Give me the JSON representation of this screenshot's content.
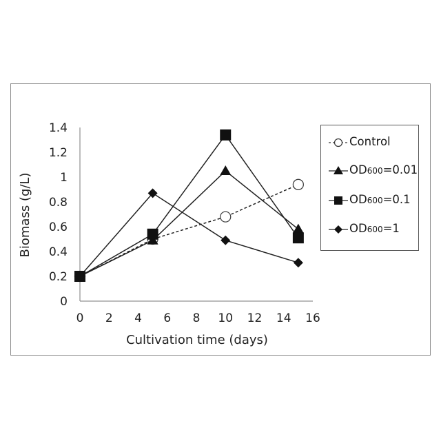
{
  "chart_data": {
    "type": "line",
    "title": "",
    "xlabel": "Cultivation time (days)",
    "ylabel": "Biomass (g/L)",
    "xlim": [
      0,
      16
    ],
    "ylim": [
      0,
      1.4
    ],
    "x_ticks": [
      "0",
      "2",
      "4",
      "6",
      "8",
      "10",
      "12",
      "14",
      "16"
    ],
    "y_ticks": [
      "0",
      "0.2",
      "0.4",
      "0.6",
      "0.8",
      "1",
      "1.2",
      "1.4"
    ],
    "grid": false,
    "legend_position": "right",
    "series": [
      {
        "name": "Control",
        "marker": "open-circle",
        "line": "dashed",
        "x": [
          0,
          5,
          10,
          15
        ],
        "y": [
          0.2,
          0.5,
          0.68,
          0.94
        ]
      },
      {
        "name": "OD600=0.01",
        "label_main": "OD",
        "label_sub": "600",
        "label_rest": "=0.01",
        "marker": "triangle",
        "line": "solid",
        "x": [
          0,
          5,
          10,
          15
        ],
        "y": [
          0.2,
          0.49,
          1.05,
          0.58
        ]
      },
      {
        "name": "OD600=0.1",
        "label_main": "OD",
        "label_sub": "600",
        "label_rest": "=0.1",
        "marker": "square",
        "line": "solid",
        "x": [
          0,
          5,
          10,
          15
        ],
        "y": [
          0.2,
          0.54,
          1.34,
          0.51
        ]
      },
      {
        "name": "OD600=1",
        "label_main": "OD",
        "label_sub": "600",
        "label_rest": "=1",
        "marker": "diamond",
        "line": "solid",
        "x": [
          0,
          5,
          10,
          15
        ],
        "y": [
          0.2,
          0.87,
          0.49,
          0.31
        ]
      }
    ]
  }
}
